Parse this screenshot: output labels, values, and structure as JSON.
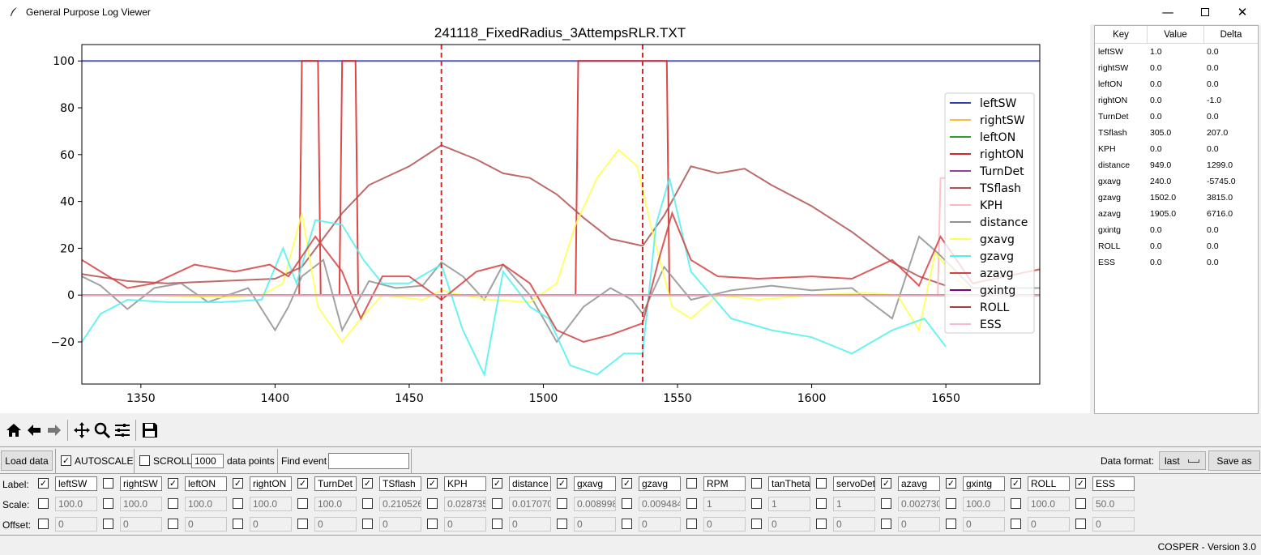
{
  "window": {
    "title": "General Purpose Log Viewer",
    "minimize_icon": "minimize-icon",
    "maximize_icon": "maximize-icon",
    "close_icon": "close-icon"
  },
  "chart_data": {
    "type": "line",
    "title": "241118_FixedRadius_3AttempsRLR.TXT",
    "xlabel": "",
    "ylabel": "",
    "xlim": [
      1328,
      1685
    ],
    "ylim": [
      -38,
      107
    ],
    "xticks": [
      "1350",
      "1400",
      "1450",
      "1500",
      "1550",
      "1600",
      "1650"
    ],
    "yticks": [
      "100",
      "80",
      "60",
      "40",
      "20",
      "0",
      "−20"
    ],
    "grid": false,
    "legend_position": "right",
    "vlines": [
      {
        "x": 1462,
        "color": "#d62728",
        "style": "dashed"
      },
      {
        "x": 1537,
        "color": "#d62728",
        "style": "dashed"
      }
    ],
    "series": [
      {
        "name": "leftSW",
        "color": "#3040b0",
        "x": [
          1328,
          1685
        ],
        "y": [
          100,
          100
        ]
      },
      {
        "name": "rightSW",
        "color": "#ffbf33",
        "x": [
          1328,
          1685
        ],
        "y": [
          0,
          0
        ]
      },
      {
        "name": "leftON",
        "color": "#2ca02c",
        "x": [
          1328,
          1685
        ],
        "y": [
          0,
          0
        ]
      },
      {
        "name": "rightON",
        "color": "#d62728",
        "x": [
          1328,
          1409,
          1410,
          1416,
          1417,
          1424,
          1425,
          1430,
          1431,
          1512,
          1513,
          1546,
          1547,
          1685
        ],
        "y": [
          0,
          0,
          100,
          100,
          0,
          0,
          100,
          100,
          0,
          0,
          100,
          100,
          0,
          0
        ]
      },
      {
        "name": "TurnDet",
        "color": "#9040a0",
        "x": [
          1328,
          1685
        ],
        "y": [
          0,
          0
        ]
      },
      {
        "name": "TSflash",
        "color": "#b05050",
        "x": [
          1328,
          1345,
          1360,
          1380,
          1400,
          1410,
          1425,
          1435,
          1450,
          1462,
          1475,
          1485,
          1495,
          1505,
          1515,
          1525,
          1537,
          1545,
          1555,
          1565,
          1575,
          1585,
          1600,
          1615,
          1630,
          1640,
          1650
        ],
        "y": [
          9,
          6,
          5,
          6,
          7,
          12,
          35,
          47,
          55,
          64,
          58,
          52,
          50,
          43,
          33,
          24,
          21,
          34,
          55,
          52,
          54,
          47,
          38,
          27,
          14,
          8,
          4
        ]
      },
      {
        "name": "KPH",
        "color": "#ffb6c1",
        "x": [
          1328,
          1647,
          1648,
          1650
        ],
        "y": [
          0,
          0,
          50,
          50
        ]
      },
      {
        "name": "distance",
        "color": "#909090",
        "x": [
          1328,
          1335,
          1345,
          1355,
          1365,
          1375,
          1390,
          1400,
          1405,
          1410,
          1418,
          1425,
          1435,
          1445,
          1455,
          1462,
          1470,
          1478,
          1485,
          1495,
          1505,
          1515,
          1525,
          1533,
          1537,
          1545,
          1555,
          1570,
          1585,
          1600,
          1615,
          1630,
          1640,
          1647,
          1660,
          1685
        ],
        "y": [
          8,
          4,
          -6,
          3,
          5,
          -3,
          3,
          -15,
          -5,
          8,
          15,
          -15,
          6,
          3,
          4,
          14,
          8,
          -2,
          13,
          0,
          -20,
          -5,
          3,
          -2,
          -8,
          12,
          -2,
          2,
          4,
          2,
          3,
          -10,
          25,
          18,
          3,
          3
        ]
      },
      {
        "name": "gxavg",
        "color": "#ffff50",
        "x": [
          1328,
          1350,
          1380,
          1395,
          1403,
          1410,
          1416,
          1425,
          1432,
          1440,
          1455,
          1462,
          1470,
          1480,
          1495,
          1505,
          1512,
          1520,
          1528,
          1535,
          1540,
          1548,
          1555,
          1565,
          1580,
          1600,
          1620,
          1632,
          1640,
          1646,
          1652,
          1660
        ],
        "y": [
          0,
          0,
          -1,
          0,
          5,
          35,
          -5,
          -20,
          -10,
          0,
          -2,
          2,
          0,
          -2,
          -3,
          5,
          30,
          50,
          62,
          55,
          30,
          -5,
          -10,
          0,
          -2,
          0,
          1,
          0,
          -15,
          18,
          10,
          0
        ]
      },
      {
        "name": "gzavg",
        "color": "#50f0f0",
        "x": [
          1328,
          1335,
          1345,
          1360,
          1380,
          1395,
          1403,
          1408,
          1415,
          1425,
          1433,
          1440,
          1450,
          1462,
          1470,
          1478,
          1485,
          1495,
          1502,
          1510,
          1520,
          1530,
          1537,
          1542,
          1547,
          1555,
          1570,
          1585,
          1600,
          1615,
          1630,
          1642,
          1650
        ],
        "y": [
          -20,
          -8,
          -2,
          -3,
          -3,
          -2,
          20,
          5,
          32,
          30,
          15,
          5,
          5,
          13,
          -15,
          -34,
          10,
          -5,
          -10,
          -30,
          -34,
          -25,
          -25,
          30,
          50,
          10,
          -10,
          -15,
          -18,
          -25,
          -15,
          -10,
          -22
        ]
      },
      {
        "name": "azavg",
        "color": "#d44040",
        "x": [
          1328,
          1345,
          1355,
          1370,
          1385,
          1398,
          1405,
          1415,
          1425,
          1432,
          1440,
          1450,
          1462,
          1475,
          1485,
          1495,
          1505,
          1515,
          1525,
          1537,
          1543,
          1548,
          1555,
          1565,
          1580,
          1600,
          1615,
          1630,
          1640,
          1648,
          1660,
          1685
        ],
        "y": [
          15,
          3,
          5,
          13,
          10,
          13,
          8,
          25,
          10,
          -10,
          8,
          8,
          -2,
          10,
          13,
          5,
          -15,
          -20,
          -17,
          -12,
          15,
          35,
          15,
          8,
          7,
          8,
          7,
          15,
          4,
          25,
          5,
          11
        ]
      },
      {
        "name": "gxintg",
        "color": "#800080",
        "x": [
          1328,
          1685
        ],
        "y": [
          0,
          0
        ]
      },
      {
        "name": "ROLL",
        "color": "#a04040",
        "x": [
          1328,
          1685
        ],
        "y": [
          0,
          0
        ]
      },
      {
        "name": "ESS",
        "color": "#f8b8d0",
        "x": [
          1328,
          1685
        ],
        "y": [
          0,
          0
        ]
      }
    ]
  },
  "keytable": {
    "headers": [
      "Key",
      "Value",
      "Delta"
    ],
    "rows": [
      [
        "leftSW",
        "1.0",
        "0.0"
      ],
      [
        "rightSW",
        "0.0",
        "0.0"
      ],
      [
        "leftON",
        "0.0",
        "0.0"
      ],
      [
        "rightON",
        "0.0",
        "-1.0"
      ],
      [
        "TurnDet",
        "0.0",
        "0.0"
      ],
      [
        "TSflash",
        "305.0",
        "207.0"
      ],
      [
        "KPH",
        "0.0",
        "0.0"
      ],
      [
        "distance",
        "949.0",
        "1299.0"
      ],
      [
        "gxavg",
        "240.0",
        "-5745.0"
      ],
      [
        "gzavg",
        "1502.0",
        "3815.0"
      ],
      [
        "azavg",
        "1905.0",
        "6716.0"
      ],
      [
        "gxintg",
        "0.0",
        "0.0"
      ],
      [
        "ROLL",
        "0.0",
        "0.0"
      ],
      [
        "ESS",
        "0.0",
        "0.0"
      ]
    ]
  },
  "toolbar": {
    "icons": [
      "home-icon",
      "back-icon",
      "forward-icon",
      "pan-icon",
      "zoom-icon",
      "configure-subplots-icon",
      "save-icon"
    ]
  },
  "controls": {
    "load_data": "Load data",
    "autoscale": "AUTOSCALE",
    "autoscale_checked": true,
    "scroll": "SCROLL",
    "scroll_checked": false,
    "scroll_points": "1000",
    "data_points": "data points",
    "find_event": "Find event",
    "find_event_value": "",
    "data_format_label": "Data format:",
    "data_format_value": "last",
    "save_as": "Save as"
  },
  "channels": {
    "row_labels": [
      "Label:",
      "Scale:",
      "Offset:"
    ],
    "items": [
      {
        "checked": true,
        "label": "leftSW",
        "scale": "100.0",
        "offset": "0"
      },
      {
        "checked": false,
        "label": "rightSW",
        "scale": "100.0",
        "offset": "0"
      },
      {
        "checked": true,
        "label": "leftON",
        "scale": "100.0",
        "offset": "0"
      },
      {
        "checked": true,
        "label": "rightON",
        "scale": "100.0",
        "offset": "0"
      },
      {
        "checked": true,
        "label": "TurnDet",
        "scale": "100.0",
        "offset": "0"
      },
      {
        "checked": true,
        "label": "TSflash",
        "scale": "0.2105263",
        "offset": "0"
      },
      {
        "checked": true,
        "label": "KPH",
        "scale": "0.0287356",
        "offset": "0"
      },
      {
        "checked": true,
        "label": "distance",
        "scale": "0.0170706",
        "offset": "0"
      },
      {
        "checked": true,
        "label": "gxavg",
        "scale": "0.0089984",
        "offset": "0"
      },
      {
        "checked": true,
        "label": "gzavg",
        "scale": "0.0094849",
        "offset": "0"
      },
      {
        "checked": false,
        "label": "RPM",
        "scale": "1",
        "offset": "0"
      },
      {
        "checked": false,
        "label": "tanTheta",
        "scale": "1",
        "offset": "0"
      },
      {
        "checked": false,
        "label": "servoDet",
        "scale": "1",
        "offset": "0"
      },
      {
        "checked": true,
        "label": "azavg",
        "scale": "0.0027304",
        "offset": "0"
      },
      {
        "checked": true,
        "label": "gxintg",
        "scale": "100.0",
        "offset": "0"
      },
      {
        "checked": true,
        "label": "ROLL",
        "scale": "100.0",
        "offset": "0"
      },
      {
        "checked": true,
        "label": "ESS",
        "scale": "50.0",
        "offset": "0"
      }
    ]
  },
  "footer": {
    "version": "COSPER - Version 3.0"
  }
}
